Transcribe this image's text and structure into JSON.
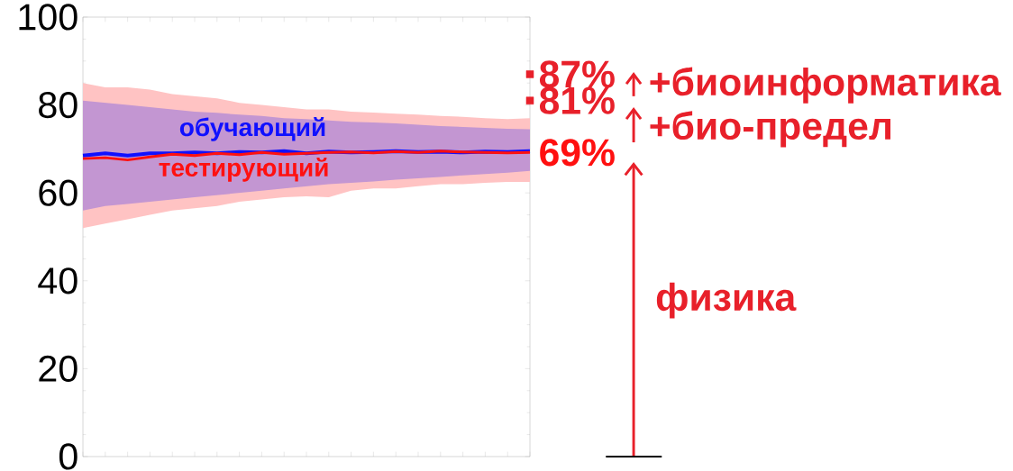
{
  "chart_data": {
    "type": "line",
    "categories": [
      null,
      null,
      null,
      null,
      null,
      null,
      null,
      null,
      null,
      null,
      null,
      null,
      null,
      null,
      null,
      null,
      null,
      null,
      null,
      null,
      null
    ],
    "ylim": [
      0,
      100
    ],
    "yticks": [
      0,
      20,
      40,
      60,
      80,
      100
    ],
    "marker": "none",
    "line_style": "solid",
    "series": [
      {
        "name": "тестирующий",
        "color": "#ff1010",
        "values": [
          67.8,
          68,
          67.5,
          68.2,
          68.8,
          68.5,
          69,
          68.7,
          69.2,
          68.8,
          69,
          69.2,
          69.3,
          69.1,
          69.4,
          69.2,
          69.5,
          69.3,
          69.2,
          69.1,
          69.2
        ],
        "lower": [
          52,
          53,
          54,
          55,
          56,
          56.5,
          57,
          58,
          58.5,
          59,
          59.2,
          59,
          60.5,
          61,
          61,
          61.5,
          62,
          62,
          62.3,
          62.5,
          62.5
        ],
        "upper": [
          85,
          84,
          84,
          83.5,
          82.5,
          82,
          81.5,
          80.5,
          80,
          79.5,
          79,
          79,
          78.5,
          78.3,
          78,
          77.8,
          77.5,
          77.3,
          77,
          76.8,
          77
        ],
        "value_labels": [
          null,
          null,
          null,
          null,
          null,
          null,
          null,
          null,
          null,
          null,
          null,
          null,
          null,
          null,
          null,
          null,
          null,
          null,
          null,
          null,
          "69%"
        ]
      },
      {
        "name": "обучающий",
        "color": "#1010ff",
        "values": [
          68.5,
          69,
          68.5,
          69,
          69,
          69.2,
          69,
          69.3,
          69.2,
          69.5,
          69,
          69.4,
          69.2,
          69.3,
          69.5,
          69.3,
          69.4,
          69.2,
          69.4,
          69.3,
          69.5
        ],
        "lower": [
          56,
          57,
          57.5,
          58,
          58.5,
          59,
          59.5,
          60,
          60.5,
          61,
          61.5,
          62,
          62.3,
          62.6,
          63,
          63.3,
          63.6,
          64,
          64.3,
          64.6,
          65
        ],
        "upper": [
          81,
          80.5,
          80,
          79.5,
          79,
          78.5,
          78.2,
          77.8,
          77.5,
          77,
          76.8,
          76.5,
          76.2,
          76,
          75.8,
          75.5,
          75.2,
          75,
          74.8,
          74.6,
          74.5
        ]
      },
      {
        "type": "scatter",
        "marker": "square",
        "color": "#e8202a",
        "values": [
          null,
          null,
          null,
          null,
          null,
          null,
          null,
          null,
          null,
          null,
          null,
          null,
          null,
          null,
          null,
          null,
          null,
          null,
          null,
          null,
          87
        ],
        "value_labels": [
          null,
          null,
          null,
          null,
          null,
          null,
          null,
          null,
          null,
          null,
          null,
          null,
          null,
          null,
          null,
          null,
          null,
          null,
          null,
          null,
          "87%"
        ]
      },
      {
        "type": "scatter",
        "marker": "square",
        "color": "#e8202a",
        "values": [
          null,
          null,
          null,
          null,
          null,
          null,
          null,
          null,
          null,
          null,
          null,
          null,
          null,
          null,
          null,
          null,
          null,
          null,
          null,
          null,
          81
        ],
        "value_labels": [
          null,
          null,
          null,
          null,
          null,
          null,
          null,
          null,
          null,
          null,
          null,
          null,
          null,
          null,
          null,
          null,
          null,
          null,
          null,
          null,
          "81%"
        ]
      }
    ],
    "annotations": [
      "+биоинформатика",
      "+био-предел",
      "физика"
    ]
  }
}
